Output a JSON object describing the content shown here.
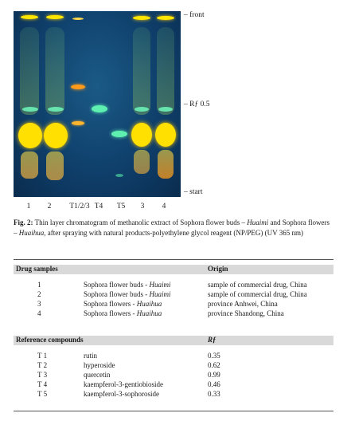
{
  "figure": {
    "side_labels": {
      "front": "– front",
      "rf": "– Rƒ 0.5",
      "start": "– start"
    },
    "lane_labels": [
      "1",
      "2",
      "T1/2/3",
      "T4",
      "T5",
      "3",
      "4"
    ]
  },
  "caption": {
    "fig_label": "Fig. 2:",
    "text_1": " Thin layer chromatogram of methanolic extract of Sophora flower buds – ",
    "italic_1": "Huaimi",
    "text_2": " and Sophora flowers – ",
    "italic_2": "Huaihua",
    "text_3": ", after spraying with natural products-polyethylene glycol reagent (NP/PEG) (UV 365 nm)"
  },
  "drug_table": {
    "col_headers": [
      "Drug samples",
      "Origin"
    ],
    "rows": [
      {
        "num": "1",
        "desc": "Sophora flower buds - ",
        "desc_italic": "Huaimi",
        "origin": "sample of commercial drug, China"
      },
      {
        "num": "2",
        "desc": "Sophora flower buds - ",
        "desc_italic": "Huaimi",
        "origin": "sample of commercial drug, China"
      },
      {
        "num": "3",
        "desc": "Sophora flowers - ",
        "desc_italic": "Huaihua",
        "origin": "province Anhwei, China"
      },
      {
        "num": "4",
        "desc": "Sophora flowers - ",
        "desc_italic": "Huaihua",
        "origin": "province Shandong, China"
      }
    ]
  },
  "ref_table": {
    "col_headers": [
      "Reference compounds",
      "Rƒ"
    ],
    "rows": [
      {
        "id": "T 1",
        "name": "rutin",
        "rf": "0.35"
      },
      {
        "id": "T 2",
        "name": "hyperoside",
        "rf": "0.62"
      },
      {
        "id": "T 3",
        "name": "quercetin",
        "rf": "0.99"
      },
      {
        "id": "T 4",
        "name": "kaempferol-3-gentiobioside",
        "rf": "0.46"
      },
      {
        "id": "T 5",
        "name": "kaempferol-3-sophoroside",
        "rf": "0.33"
      }
    ]
  },
  "colors": {
    "plate": "#0f3f6b",
    "yellow_band": "#ffe600",
    "orange_band": "#ff9a1a",
    "green_band": "#5ef0b0",
    "header_bg": "#d9d9d9"
  }
}
